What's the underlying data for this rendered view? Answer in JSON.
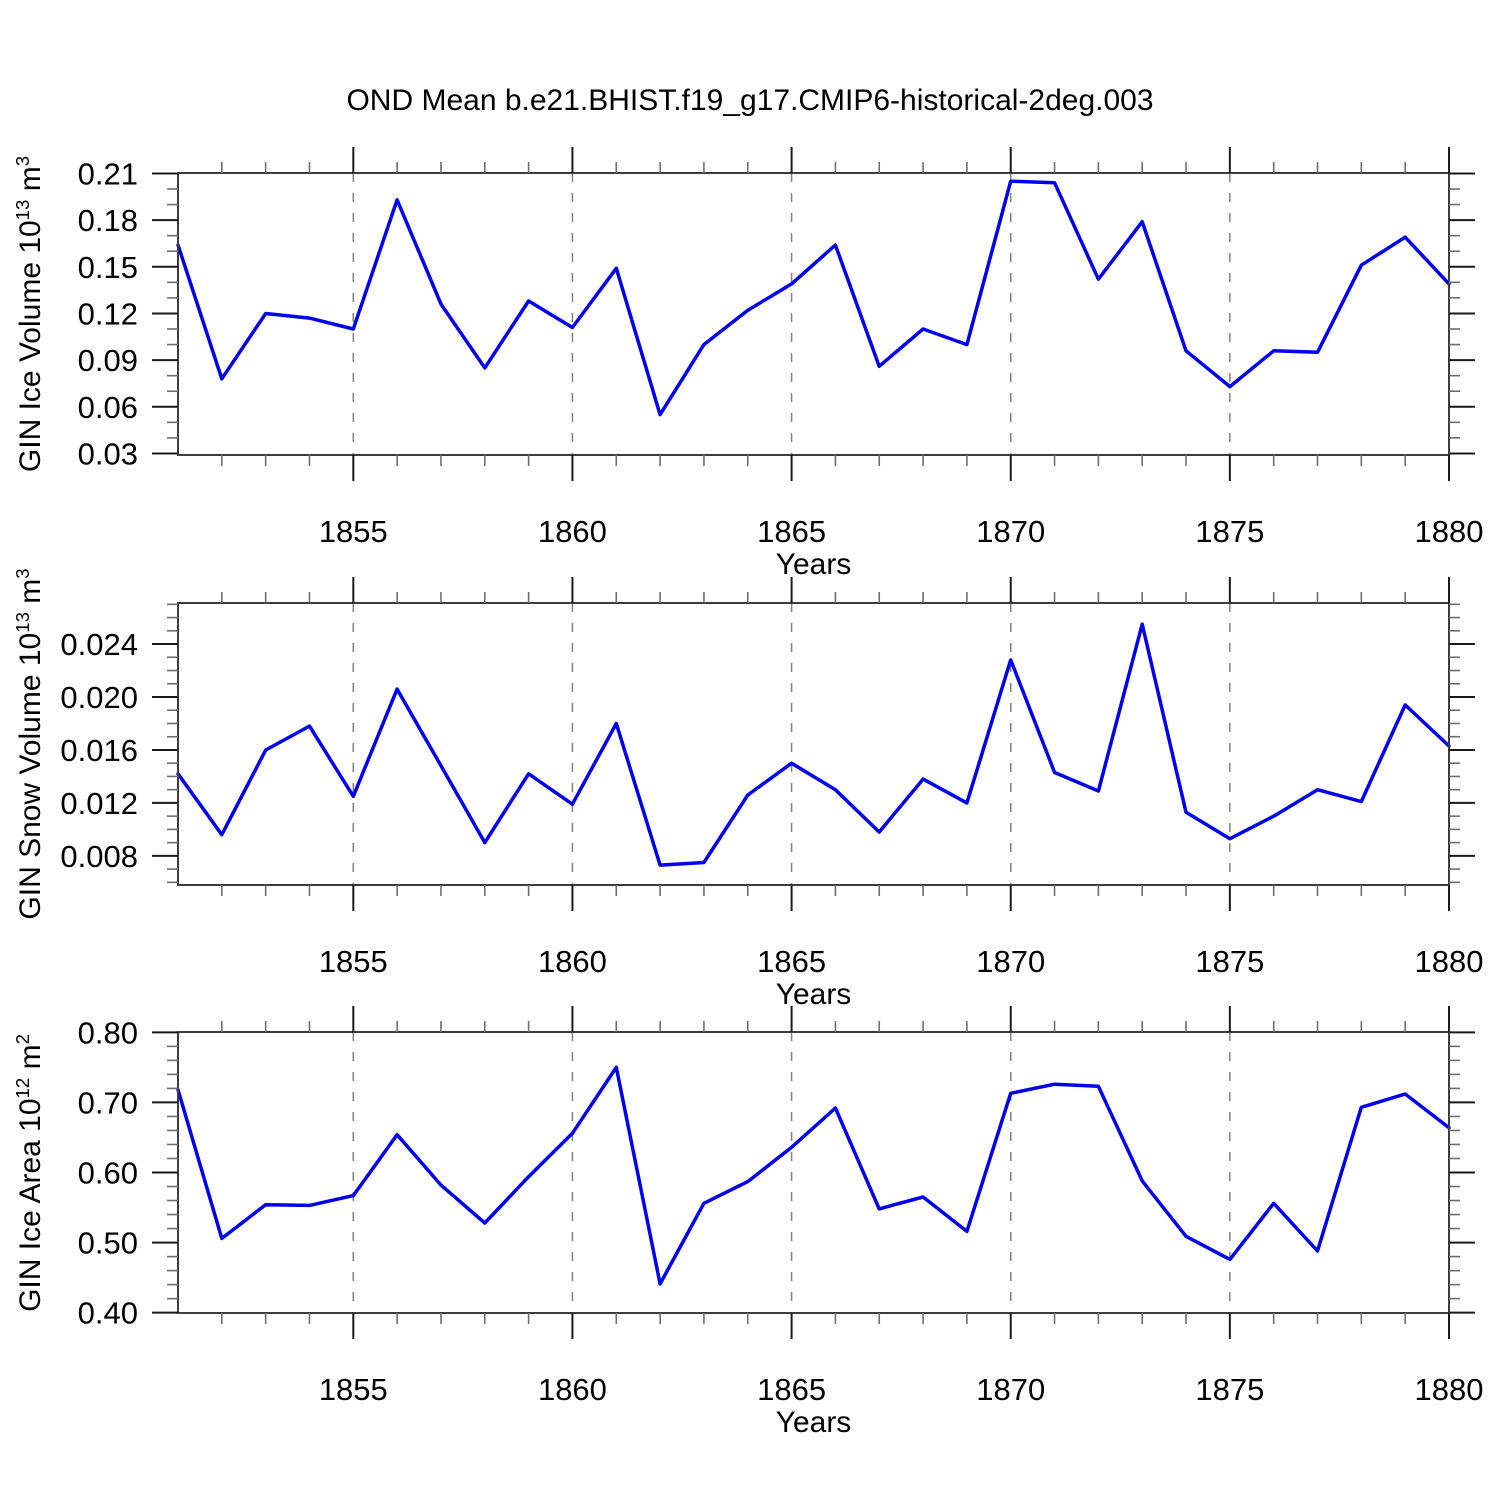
{
  "title": "OND Mean b.e21.BHIST.f19_g17.CMIP6-historical-2deg.003",
  "colors": {
    "line": "#0000EE",
    "grid": "#808080",
    "axis": "#3d3d3d",
    "major_tick": "#1a1a1a",
    "minor_tick": "#6e6e6e",
    "text": "#000000"
  },
  "chart_data": [
    {
      "type": "line",
      "series_name": "GIN Ice Volume",
      "ylabel": {
        "text": "GIN Ice Volume 10",
        "exp": "13",
        "unit": "m",
        "unit_exp": "3"
      },
      "xlabel": "Years",
      "x": [
        1851,
        1852,
        1853,
        1854,
        1855,
        1856,
        1857,
        1858,
        1859,
        1860,
        1861,
        1862,
        1863,
        1864,
        1865,
        1866,
        1867,
        1868,
        1869,
        1870,
        1871,
        1872,
        1873,
        1874,
        1875,
        1876,
        1877,
        1878,
        1879,
        1880
      ],
      "values": [
        0.164,
        0.078,
        0.12,
        0.117,
        0.11,
        0.193,
        0.126,
        0.085,
        0.128,
        0.111,
        0.149,
        0.055,
        0.1,
        0.122,
        0.139,
        0.164,
        0.086,
        0.11,
        0.1,
        0.205,
        0.204,
        0.142,
        0.179,
        0.096,
        0.073,
        0.096,
        0.095,
        0.151,
        0.169,
        0.139
      ],
      "xlim": [
        1851,
        1880
      ],
      "ylim": [
        0.029,
        0.2103
      ],
      "yticks": [
        0.03,
        0.06,
        0.09,
        0.12,
        0.15,
        0.18,
        0.21
      ],
      "ytick_labels": [
        "0.03",
        "0.06",
        "0.09",
        "0.12",
        "0.15",
        "0.18",
        "0.21"
      ],
      "minor_ytick_step": 0.01,
      "xticks": [
        1855,
        1860,
        1865,
        1870,
        1875,
        1880
      ],
      "xtick_labels": [
        "1855",
        "1860",
        "1865",
        "1870",
        "1875",
        "1880"
      ],
      "minor_xtick_step": 1,
      "grid_x": [
        1855,
        1860,
        1865,
        1870,
        1875
      ],
      "grid_style": "vertical-dashed",
      "legend": "none"
    },
    {
      "type": "line",
      "series_name": "GIN Snow Volume",
      "ylabel": {
        "text": "GIN Snow Volume 10",
        "exp": "13",
        "unit": "m",
        "unit_exp": "3"
      },
      "xlabel": "Years",
      "x": [
        1851,
        1852,
        1853,
        1854,
        1855,
        1856,
        1857,
        1858,
        1859,
        1860,
        1861,
        1862,
        1863,
        1864,
        1865,
        1866,
        1867,
        1868,
        1869,
        1870,
        1871,
        1872,
        1873,
        1874,
        1875,
        1876,
        1877,
        1878,
        1879,
        1880
      ],
      "values": [
        0.0142,
        0.0096,
        0.016,
        0.0178,
        0.0125,
        0.0206,
        0.0148,
        0.009,
        0.0142,
        0.0119,
        0.018,
        0.0073,
        0.0075,
        0.0126,
        0.015,
        0.013,
        0.0098,
        0.0138,
        0.012,
        0.0228,
        0.0143,
        0.0129,
        0.0255,
        0.0113,
        0.0093,
        0.011,
        0.013,
        0.0121,
        0.0194,
        0.0163
      ],
      "xlim": [
        1851,
        1880
      ],
      "ylim": [
        0.0058,
        0.0271
      ],
      "yticks": [
        0.008,
        0.012,
        0.016,
        0.02,
        0.024
      ],
      "ytick_labels": [
        "0.008",
        "0.012",
        "0.016",
        "0.020",
        "0.024"
      ],
      "minor_ytick_step": 0.001,
      "xticks": [
        1855,
        1860,
        1865,
        1870,
        1875,
        1880
      ],
      "xtick_labels": [
        "1855",
        "1860",
        "1865",
        "1870",
        "1875",
        "1880"
      ],
      "minor_xtick_step": 1,
      "grid_x": [
        1855,
        1860,
        1865,
        1870,
        1875
      ],
      "grid_style": "vertical-dashed",
      "legend": "none"
    },
    {
      "type": "line",
      "series_name": "GIN Ice Area",
      "ylabel": {
        "text": "GIN Ice Area 10",
        "exp": "12",
        "unit": "m",
        "unit_exp": "2"
      },
      "xlabel": "Years",
      "x": [
        1851,
        1852,
        1853,
        1854,
        1855,
        1856,
        1857,
        1858,
        1859,
        1860,
        1861,
        1862,
        1863,
        1864,
        1865,
        1866,
        1867,
        1868,
        1869,
        1870,
        1871,
        1872,
        1873,
        1874,
        1875,
        1876,
        1877,
        1878,
        1879,
        1880
      ],
      "values": [
        0.718,
        0.506,
        0.554,
        0.553,
        0.567,
        0.654,
        0.582,
        0.528,
        0.594,
        0.656,
        0.75,
        0.441,
        0.556,
        0.587,
        0.636,
        0.692,
        0.548,
        0.565,
        0.516,
        0.713,
        0.726,
        0.723,
        0.588,
        0.509,
        0.476,
        0.556,
        0.488,
        0.693,
        0.712,
        0.664
      ],
      "xlim": [
        1851,
        1880
      ],
      "ylim": [
        0.3995,
        0.8005
      ],
      "yticks": [
        0.4,
        0.5,
        0.6,
        0.7,
        0.8
      ],
      "ytick_labels": [
        "0.40",
        "0.50",
        "0.60",
        "0.70",
        "0.80"
      ],
      "minor_ytick_step": 0.02,
      "xticks": [
        1855,
        1860,
        1865,
        1870,
        1875,
        1880
      ],
      "xtick_labels": [
        "1855",
        "1860",
        "1865",
        "1870",
        "1875",
        "1880"
      ],
      "minor_xtick_step": 1,
      "grid_x": [
        1855,
        1860,
        1865,
        1870,
        1875
      ],
      "grid_style": "vertical-dashed",
      "legend": "none"
    }
  ]
}
